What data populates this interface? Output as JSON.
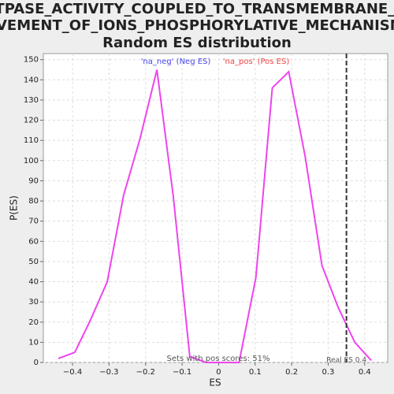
{
  "chart_data": {
    "type": "line",
    "title": [
      "ATPASE_ACTIVITY_COUPLED_TO_TRANSMEMBRANE_M",
      "OVEMENT_OF_IONS_PHOSPHORYLATIVE_MECHANISM:",
      "Random ES distribution"
    ],
    "xlabel": "ES",
    "ylabel": "P(ES)",
    "x": [
      -0.439,
      -0.394,
      -0.351,
      -0.305,
      -0.26,
      -0.215,
      -0.169,
      -0.124,
      -0.079,
      -0.034,
      0.011,
      0.056,
      0.102,
      0.147,
      0.192,
      0.237,
      0.283,
      0.328,
      0.373,
      0.418
    ],
    "series": [
      {
        "color": "#ee44ee",
        "values": [
          2,
          5,
          21,
          40,
          83,
          111,
          145,
          82,
          3,
          0,
          0,
          0,
          42,
          136,
          144,
          102,
          48,
          27,
          10,
          1
        ]
      }
    ],
    "xlim": [
      -0.48,
      0.463
    ],
    "ylim": [
      0,
      153
    ],
    "xticks": [
      {
        "value": -0.4,
        "label": "−0.4"
      },
      {
        "value": -0.3,
        "label": "−0.3"
      },
      {
        "value": -0.2,
        "label": "−0.2"
      },
      {
        "value": -0.1,
        "label": "−0.1"
      },
      0,
      0.1,
      0.2,
      0.3,
      0.4
    ],
    "yticks": [
      0,
      10,
      20,
      30,
      40,
      50,
      60,
      70,
      80,
      90,
      100,
      110,
      120,
      130,
      140,
      150
    ],
    "grid": true,
    "neg_label": {
      "text": "'na_neg' (Neg ES)",
      "color": "#4444ee"
    },
    "pos_label": {
      "text": "'na_pos' (Pos ES)",
      "color": "#ee4444"
    },
    "footnote": "Sets with pos scores: 51%",
    "real_es": {
      "value": 0.35,
      "label": "Real ES 0.4"
    }
  }
}
